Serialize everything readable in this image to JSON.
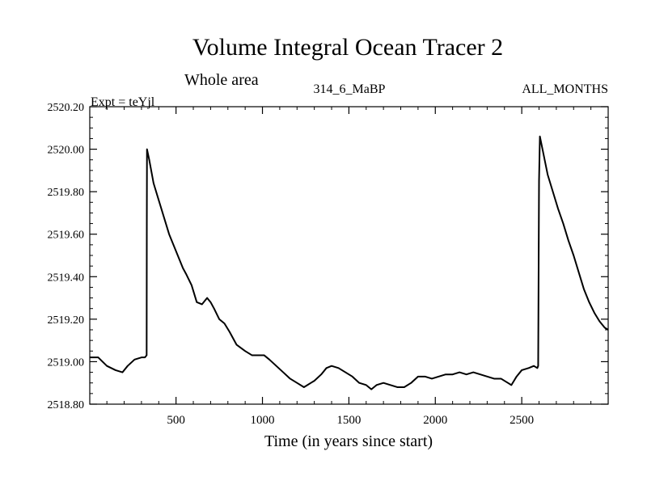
{
  "chart_data": {
    "type": "line",
    "title": "Volume Integral Ocean Tracer 2",
    "subtitle": "Whole area",
    "left_label": "Expt = teYjl",
    "center_label": "314_6_MaBP",
    "right_label": "ALL_MONTHS",
    "xlabel": "Time (in years since start)",
    "ylabel": "",
    "xlim": [
      1,
      3000
    ],
    "ylim": [
      2518.8,
      2520.2
    ],
    "x_ticks": [
      500,
      1000,
      1500,
      2000,
      2500
    ],
    "x_tick_labels": [
      "500",
      "1000",
      "1500",
      "2000",
      "2500"
    ],
    "y_ticks": [
      2518.8,
      2519.0,
      2519.2,
      2519.4,
      2519.6,
      2519.8,
      2520.0,
      2520.2
    ],
    "y_tick_labels": [
      "2518.80",
      "2519.00",
      "2519.20",
      "2519.40",
      "2519.60",
      "2519.80",
      "2520.00",
      "2520.20"
    ],
    "grid": false,
    "line_color": "#000000",
    "series": [
      {
        "x": [
          1,
          50,
          100,
          150,
          190,
          220,
          260,
          300,
          320,
          330,
          331,
          332,
          345,
          370,
          400,
          430,
          460,
          500,
          540,
          560,
          590,
          620,
          650,
          680,
          700,
          720,
          750,
          780,
          810,
          850,
          900,
          940,
          980,
          1010,
          1040,
          1080,
          1120,
          1160,
          1200,
          1240,
          1280,
          1300,
          1340,
          1370,
          1400,
          1440,
          1480,
          1520,
          1560,
          1600,
          1630,
          1660,
          1700,
          1740,
          1780,
          1820,
          1860,
          1900,
          1940,
          1980,
          2020,
          2060,
          2100,
          2140,
          2180,
          2220,
          2260,
          2300,
          2340,
          2380,
          2420,
          2440,
          2470,
          2500,
          2540,
          2570,
          2590,
          2595,
          2600,
          2605,
          2620,
          2650,
          2680,
          2710,
          2740,
          2770,
          2800,
          2830,
          2860,
          2890,
          2920,
          2950,
          2980,
          3000
        ],
        "y": [
          2519.02,
          2519.02,
          2518.98,
          2518.96,
          2518.95,
          2518.98,
          2519.01,
          2519.02,
          2519.02,
          2519.03,
          2519.65,
          2520.0,
          2519.95,
          2519.84,
          2519.76,
          2519.68,
          2519.6,
          2519.52,
          2519.44,
          2519.41,
          2519.36,
          2519.28,
          2519.27,
          2519.3,
          2519.28,
          2519.25,
          2519.2,
          2519.18,
          2519.14,
          2519.08,
          2519.05,
          2519.03,
          2519.03,
          2519.03,
          2519.01,
          2518.98,
          2518.95,
          2518.92,
          2518.9,
          2518.88,
          2518.9,
          2518.91,
          2518.94,
          2518.97,
          2518.98,
          2518.97,
          2518.95,
          2518.93,
          2518.9,
          2518.89,
          2518.87,
          2518.89,
          2518.9,
          2518.89,
          2518.88,
          2518.88,
          2518.9,
          2518.93,
          2518.93,
          2518.92,
          2518.93,
          2518.94,
          2518.94,
          2518.95,
          2518.94,
          2518.95,
          2518.94,
          2518.93,
          2518.92,
          2518.92,
          2518.9,
          2518.89,
          2518.93,
          2518.96,
          2518.97,
          2518.98,
          2518.97,
          2518.98,
          2519.85,
          2520.06,
          2520.0,
          2519.88,
          2519.8,
          2519.72,
          2519.65,
          2519.57,
          2519.5,
          2519.42,
          2519.34,
          2519.28,
          2519.23,
          2519.19,
          2519.16,
          2519.15
        ]
      }
    ]
  }
}
